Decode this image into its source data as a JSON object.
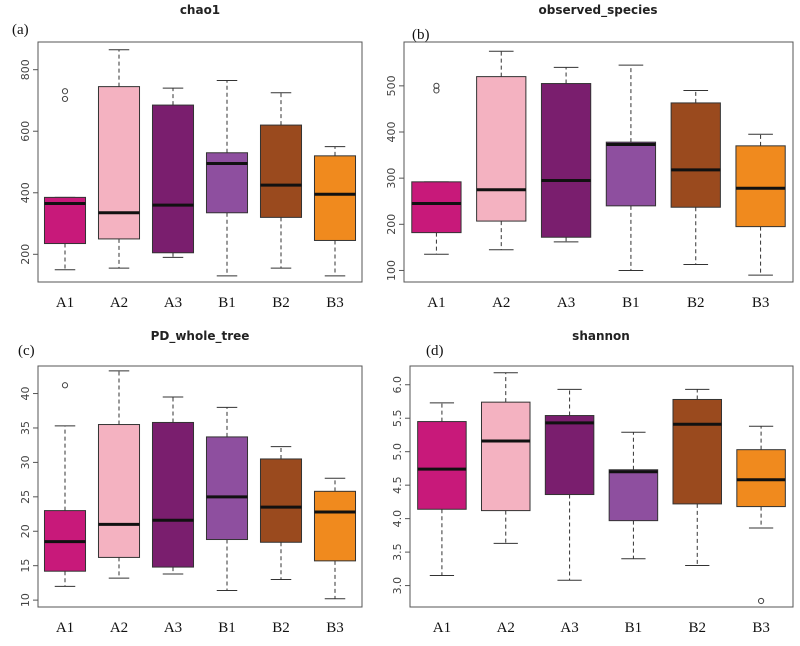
{
  "chart_data": [
    {
      "type": "boxplot",
      "panel_label": "(a)",
      "title": "chao1",
      "categories": [
        "A1",
        "A2",
        "A3",
        "B1",
        "B2",
        "B3"
      ],
      "yticks": [
        "200",
        "400",
        "600",
        "800"
      ],
      "ylim": [
        110,
        890
      ],
      "colors": [
        "#c8197a",
        "#f4b2c1",
        "#7a1e6e",
        "#8e4f9f",
        "#9a4a1e",
        "#f08a1e"
      ],
      "boxes": [
        {
          "min": 150,
          "q1": 235,
          "median": 365,
          "q3": 385,
          "max": 385,
          "outliers": [
            705,
            730
          ]
        },
        {
          "min": 155,
          "q1": 250,
          "median": 335,
          "q3": 745,
          "max": 865,
          "outliers": []
        },
        {
          "min": 190,
          "q1": 205,
          "median": 360,
          "q3": 685,
          "max": 740,
          "outliers": []
        },
        {
          "min": 130,
          "q1": 335,
          "median": 495,
          "q3": 530,
          "max": 765,
          "outliers": []
        },
        {
          "min": 155,
          "q1": 320,
          "median": 425,
          "q3": 620,
          "max": 725,
          "outliers": []
        },
        {
          "min": 130,
          "q1": 245,
          "median": 395,
          "q3": 520,
          "max": 550,
          "outliers": []
        }
      ]
    },
    {
      "type": "boxplot",
      "panel_label": "(b)",
      "title": "observed_species",
      "categories": [
        "A1",
        "A2",
        "A3",
        "B1",
        "B2",
        "B3"
      ],
      "yticks": [
        "100",
        "200",
        "300",
        "400",
        "500"
      ],
      "ylim": [
        75,
        595
      ],
      "colors": [
        "#c8197a",
        "#f4b2c1",
        "#7a1e6e",
        "#8e4f9f",
        "#9a4a1e",
        "#f08a1e"
      ],
      "boxes": [
        {
          "min": 135,
          "q1": 182,
          "median": 245,
          "q3": 292,
          "max": 292,
          "outliers": [
            490,
            500
          ]
        },
        {
          "min": 145,
          "q1": 207,
          "median": 275,
          "q3": 520,
          "max": 575,
          "outliers": []
        },
        {
          "min": 162,
          "q1": 172,
          "median": 295,
          "q3": 505,
          "max": 540,
          "outliers": []
        },
        {
          "min": 100,
          "q1": 240,
          "median": 373,
          "q3": 378,
          "max": 545,
          "outliers": []
        },
        {
          "min": 113,
          "q1": 237,
          "median": 318,
          "q3": 463,
          "max": 490,
          "outliers": []
        },
        {
          "min": 90,
          "q1": 195,
          "median": 278,
          "q3": 370,
          "max": 395,
          "outliers": []
        }
      ]
    },
    {
      "type": "boxplot",
      "panel_label": "(c)",
      "title": "PD_whole_tree",
      "categories": [
        "A1",
        "A2",
        "A3",
        "B1",
        "B2",
        "B3"
      ],
      "yticks": [
        "10",
        "15",
        "20",
        "25",
        "30",
        "35",
        "40"
      ],
      "ylim": [
        9,
        44
      ],
      "colors": [
        "#c8197a",
        "#f4b2c1",
        "#7a1e6e",
        "#8e4f9f",
        "#9a4a1e",
        "#f08a1e"
      ],
      "boxes": [
        {
          "min": 12,
          "q1": 14.2,
          "median": 18.5,
          "q3": 23,
          "max": 35.3,
          "outliers": [
            41.2
          ]
        },
        {
          "min": 13.2,
          "q1": 16.2,
          "median": 21,
          "q3": 35.5,
          "max": 43.3,
          "outliers": []
        },
        {
          "min": 13.8,
          "q1": 14.8,
          "median": 21.6,
          "q3": 35.8,
          "max": 39.5,
          "outliers": []
        },
        {
          "min": 11.4,
          "q1": 18.8,
          "median": 25,
          "q3": 33.7,
          "max": 38,
          "outliers": []
        },
        {
          "min": 13,
          "q1": 18.4,
          "median": 23.5,
          "q3": 30.5,
          "max": 32.3,
          "outliers": []
        },
        {
          "min": 10.2,
          "q1": 15.7,
          "median": 22.8,
          "q3": 25.8,
          "max": 27.7,
          "outliers": []
        }
      ]
    },
    {
      "type": "boxplot",
      "panel_label": "(d)",
      "title": "shannon",
      "categories": [
        "A1",
        "A2",
        "A3",
        "B1",
        "B2",
        "B3"
      ],
      "yticks": [
        "3.0",
        "3.5",
        "4.0",
        "4.5",
        "5.0",
        "5.5",
        "6.0"
      ],
      "ylim": [
        2.68,
        6.28
      ],
      "colors": [
        "#c8197a",
        "#f4b2c1",
        "#7a1e6e",
        "#8e4f9f",
        "#9a4a1e",
        "#f08a1e"
      ],
      "boxes": [
        {
          "min": 3.15,
          "q1": 4.14,
          "median": 4.74,
          "q3": 5.45,
          "max": 5.73,
          "outliers": []
        },
        {
          "min": 3.63,
          "q1": 4.12,
          "median": 5.16,
          "q3": 5.74,
          "max": 6.18,
          "outliers": []
        },
        {
          "min": 3.08,
          "q1": 4.36,
          "median": 5.43,
          "q3": 5.54,
          "max": 5.93,
          "outliers": []
        },
        {
          "min": 3.4,
          "q1": 3.97,
          "median": 4.7,
          "q3": 4.73,
          "max": 5.29,
          "outliers": []
        },
        {
          "min": 3.3,
          "q1": 4.22,
          "median": 5.41,
          "q3": 5.78,
          "max": 5.93,
          "outliers": []
        },
        {
          "min": 3.86,
          "q1": 4.18,
          "median": 4.58,
          "q3": 5.03,
          "max": 5.38,
          "outliers": [
            2.77
          ]
        }
      ]
    }
  ]
}
